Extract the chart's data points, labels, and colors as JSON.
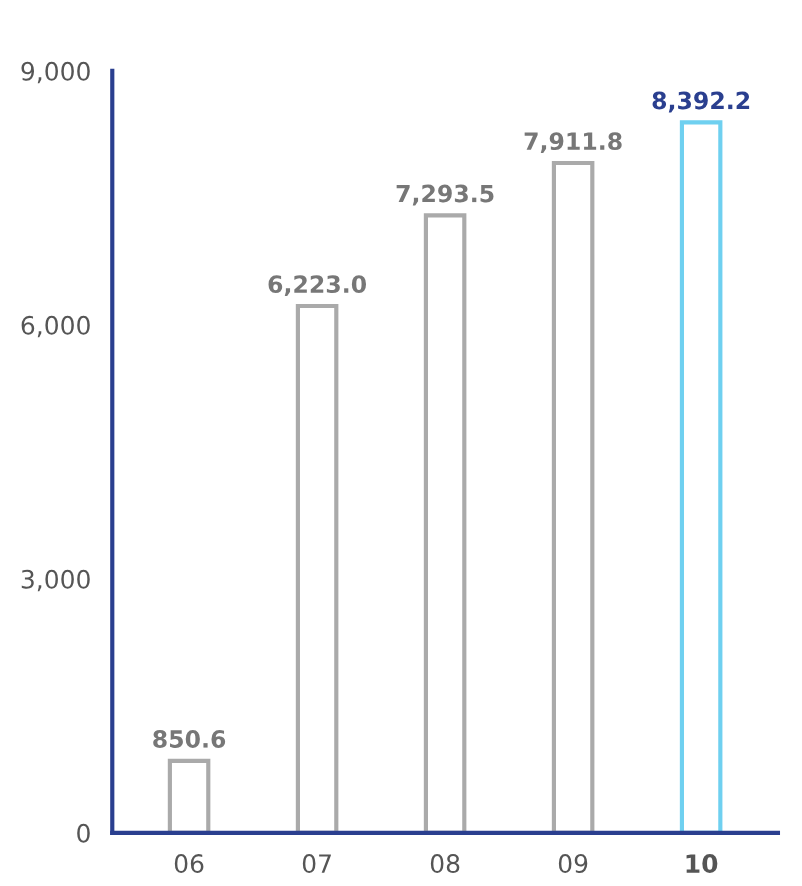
{
  "chart_data": {
    "type": "bar",
    "categories": [
      "06",
      "07",
      "08",
      "09",
      "10"
    ],
    "values": [
      850.6,
      6223.0,
      7293.5,
      7911.8,
      8392.2
    ],
    "colors": [
      "#aaaaaa",
      "#aaaaaa",
      "#aaaaaa",
      "#aaaaaa",
      "#6fd0f0"
    ],
    "value_labels": [
      "850.6",
      "6,223.0",
      "7,293.5",
      "7,911.8",
      "8,392.2"
    ],
    "ylim": [
      0,
      9000
    ],
    "yticks": [
      {
        "value": 0,
        "label": "0"
      },
      {
        "value": 3000,
        "label": "3,000"
      },
      {
        "value": 6000,
        "label": "6,000"
      },
      {
        "value": 9000,
        "label": "9,000"
      }
    ],
    "grid": false,
    "legend": false
  }
}
